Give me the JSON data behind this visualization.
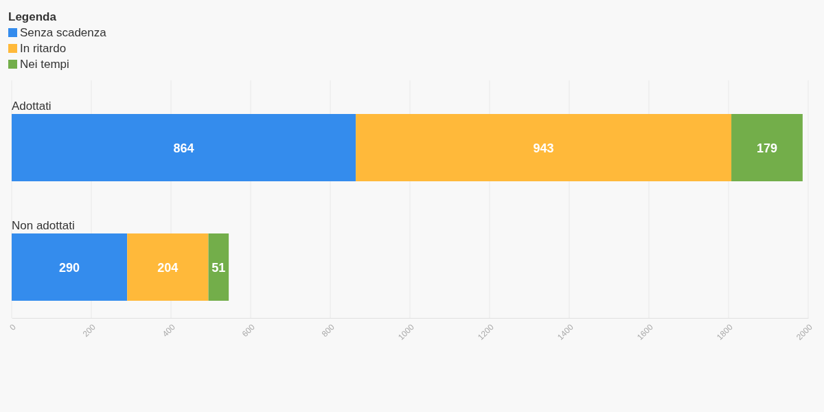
{
  "chart_data": {
    "type": "bar",
    "orientation": "horizontal",
    "stacked": true,
    "legend_title": "Legenda",
    "legend": "top left",
    "categories": [
      "Adottati",
      "Non adottati"
    ],
    "series": [
      {
        "name": "Senza scadenza",
        "color": "#348ced",
        "values": [
          864,
          290
        ]
      },
      {
        "name": "In ritardo",
        "color": "#ffb93a",
        "values": [
          943,
          204
        ]
      },
      {
        "name": "Nei tempi",
        "color": "#73ae4a",
        "values": [
          179,
          51
        ]
      }
    ],
    "xlim": [
      0,
      2000
    ],
    "xticks": [
      0,
      200,
      400,
      600,
      800,
      1000,
      1200,
      1400,
      1600,
      1800,
      2000
    ],
    "grid": "x",
    "data_labels": true
  }
}
